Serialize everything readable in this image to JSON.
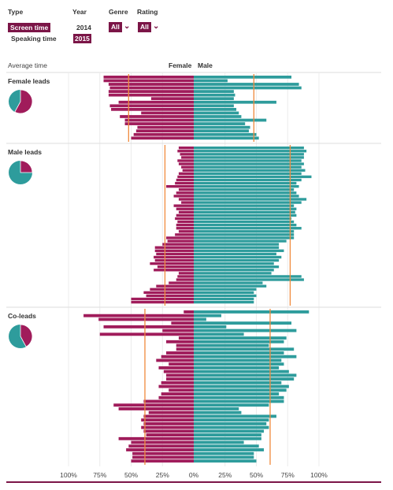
{
  "controls": {
    "type_label": "Type",
    "type_options": [
      "Screen time",
      "Speaking time"
    ],
    "year_label": "Year",
    "year_options": [
      "2014",
      "2015"
    ],
    "genre_label": "Genre",
    "genre_value": "All",
    "rating_label": "Rating",
    "rating_value": "All"
  },
  "header": {
    "average_time": "Average time",
    "female": "Female",
    "male": "Male"
  },
  "colors": {
    "female": "#a01c5b",
    "male": "#2e9c9c",
    "average_line": "#f08a3c",
    "accent": "#7b1547"
  },
  "chart_data": {
    "type": "bar",
    "orientation": "horizontal-diverging",
    "x_tick_labels": [
      "100%",
      "75%",
      "50%",
      "25%",
      "0%",
      "25%",
      "50%",
      "75%",
      "100%"
    ],
    "xlim": [
      -100,
      100
    ],
    "grid": true,
    "panels": [
      {
        "label": "Female leads",
        "pie": {
          "female": 58,
          "male": 42
        },
        "average": {
          "female": 52,
          "male": 48
        },
        "female": [
          72,
          72,
          68,
          67,
          68,
          68,
          34,
          60,
          67,
          66,
          42,
          59,
          55,
          55,
          45,
          46,
          48,
          50
        ],
        "male": [
          78,
          27,
          84,
          86,
          32,
          33,
          32,
          66,
          32,
          34,
          36,
          38,
          58,
          41,
          45,
          44,
          50,
          52
        ]
      },
      {
        "label": "Male leads",
        "pie": {
          "female": 25,
          "male": 75
        },
        "average": {
          "female": 23,
          "male": 77
        },
        "female": [
          12,
          13,
          11,
          10,
          13,
          12,
          10,
          9,
          12,
          13,
          14,
          15,
          22,
          12,
          14,
          16,
          12,
          10,
          16,
          14,
          12,
          14,
          15,
          13,
          14,
          14,
          12,
          15,
          22,
          21,
          25,
          31,
          31,
          30,
          32,
          31,
          35,
          29,
          32,
          12,
          13,
          14,
          20,
          30,
          35,
          40,
          38,
          50,
          50
        ],
        "male": [
          88,
          90,
          88,
          88,
          86,
          88,
          86,
          89,
          86,
          94,
          86,
          82,
          84,
          80,
          82,
          84,
          90,
          86,
          80,
          82,
          81,
          82,
          78,
          80,
          82,
          86,
          80,
          80,
          80,
          74,
          68,
          68,
          72,
          66,
          70,
          68,
          64,
          68,
          64,
          62,
          86,
          88,
          55,
          58,
          50,
          48,
          50,
          48,
          48
        ],
        "male_extra": [
          0,
          0,
          0,
          0,
          0,
          0,
          0,
          0,
          0,
          0,
          0,
          0,
          0,
          0,
          0,
          0,
          0,
          0,
          0,
          0,
          0,
          0,
          0,
          0,
          0,
          0,
          0,
          0,
          0,
          0,
          0,
          0,
          0,
          0,
          0,
          0,
          0,
          0,
          0,
          0,
          0,
          0,
          0,
          0,
          0,
          0,
          0,
          0,
          0
        ]
      },
      {
        "label": "Co-leads",
        "pie": {
          "female": 42,
          "male": 58
        },
        "average": {
          "female": 39,
          "male": 61
        },
        "female": [
          8,
          88,
          76,
          18,
          72,
          25,
          75,
          12,
          22,
          14,
          14,
          22,
          26,
          30,
          20,
          28,
          24,
          22,
          22,
          26,
          28,
          20,
          26,
          28,
          40,
          64,
          60,
          36,
          40,
          42,
          40,
          42,
          40,
          38,
          60,
          50,
          52,
          54,
          49,
          49,
          50
        ],
        "male": [
          92,
          22,
          10,
          78,
          26,
          82,
          40,
          74,
          72,
          60,
          80,
          72,
          82,
          70,
          72,
          68,
          76,
          82,
          80,
          70,
          76,
          74,
          68,
          72,
          72,
          60,
          36,
          38,
          66,
          60,
          58,
          60,
          56,
          54,
          54,
          40,
          52,
          56,
          48,
          48,
          50
        ]
      }
    ]
  }
}
